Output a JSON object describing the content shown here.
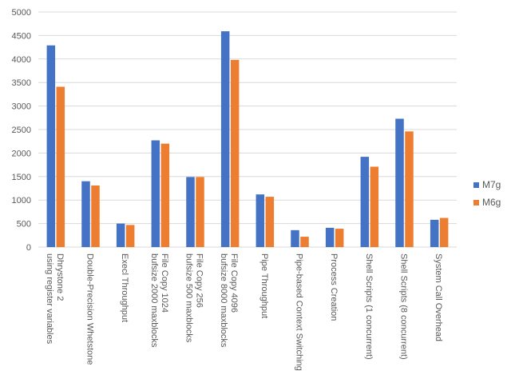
{
  "chart_data": {
    "type": "bar",
    "title": "",
    "xlabel": "",
    "ylabel": "",
    "ylim": [
      0,
      5000
    ],
    "yticks": [
      0,
      500,
      1000,
      1500,
      2000,
      2500,
      3000,
      3500,
      4000,
      4500,
      5000
    ],
    "grid": true,
    "legend_position": "right",
    "categories": [
      [
        "Dhrystone 2",
        "using register variables"
      ],
      [
        "Double-Precision Whetstone"
      ],
      [
        "Execl Throughput"
      ],
      [
        "File Copy 1024",
        "bufsize 2000 maxblocks"
      ],
      [
        "File Copy 256",
        "bufsize 500 maxblocks"
      ],
      [
        "File Copy 4096",
        "bufsize 8000 maxblocks"
      ],
      [
        "Pipe Throughput"
      ],
      [
        "Pipe-based Context Switching"
      ],
      [
        "Process Creation"
      ],
      [
        "Shell Scripts (1 concurrent)"
      ],
      [
        "Shell Scripts (8 concurrent)"
      ],
      [
        "System Call Overhead"
      ]
    ],
    "series": [
      {
        "name": "M7g",
        "color": "#4472C4",
        "values": [
          4290,
          1400,
          500,
          2270,
          1490,
          4590,
          1120,
          360,
          410,
          1920,
          2730,
          580
        ]
      },
      {
        "name": "M6g",
        "color": "#ED7D31",
        "values": [
          3410,
          1310,
          470,
          2200,
          1490,
          3980,
          1070,
          220,
          390,
          1710,
          2460,
          620
        ]
      }
    ]
  }
}
